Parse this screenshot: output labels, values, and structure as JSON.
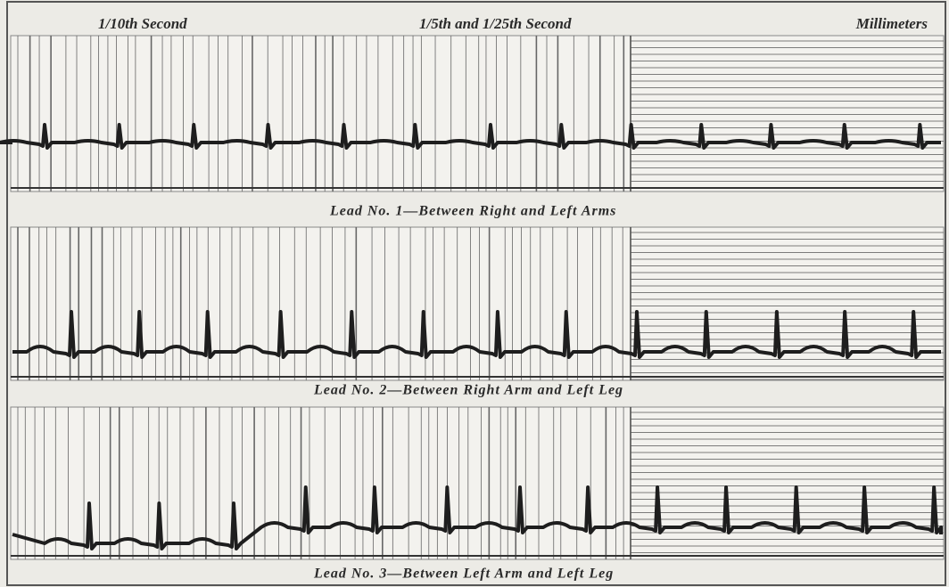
{
  "header": {
    "labels": [
      "1/10th Second",
      "1/5th and 1/25th Second",
      "Millimeters"
    ]
  },
  "leads": [
    {
      "caption": "Lead No. 1—Between Right and Left Arms"
    },
    {
      "caption": "Lead No. 2—Between Right Arm and Left Leg"
    },
    {
      "caption": "Lead No. 3—Between Left Arm and Left Leg"
    }
  ]
}
